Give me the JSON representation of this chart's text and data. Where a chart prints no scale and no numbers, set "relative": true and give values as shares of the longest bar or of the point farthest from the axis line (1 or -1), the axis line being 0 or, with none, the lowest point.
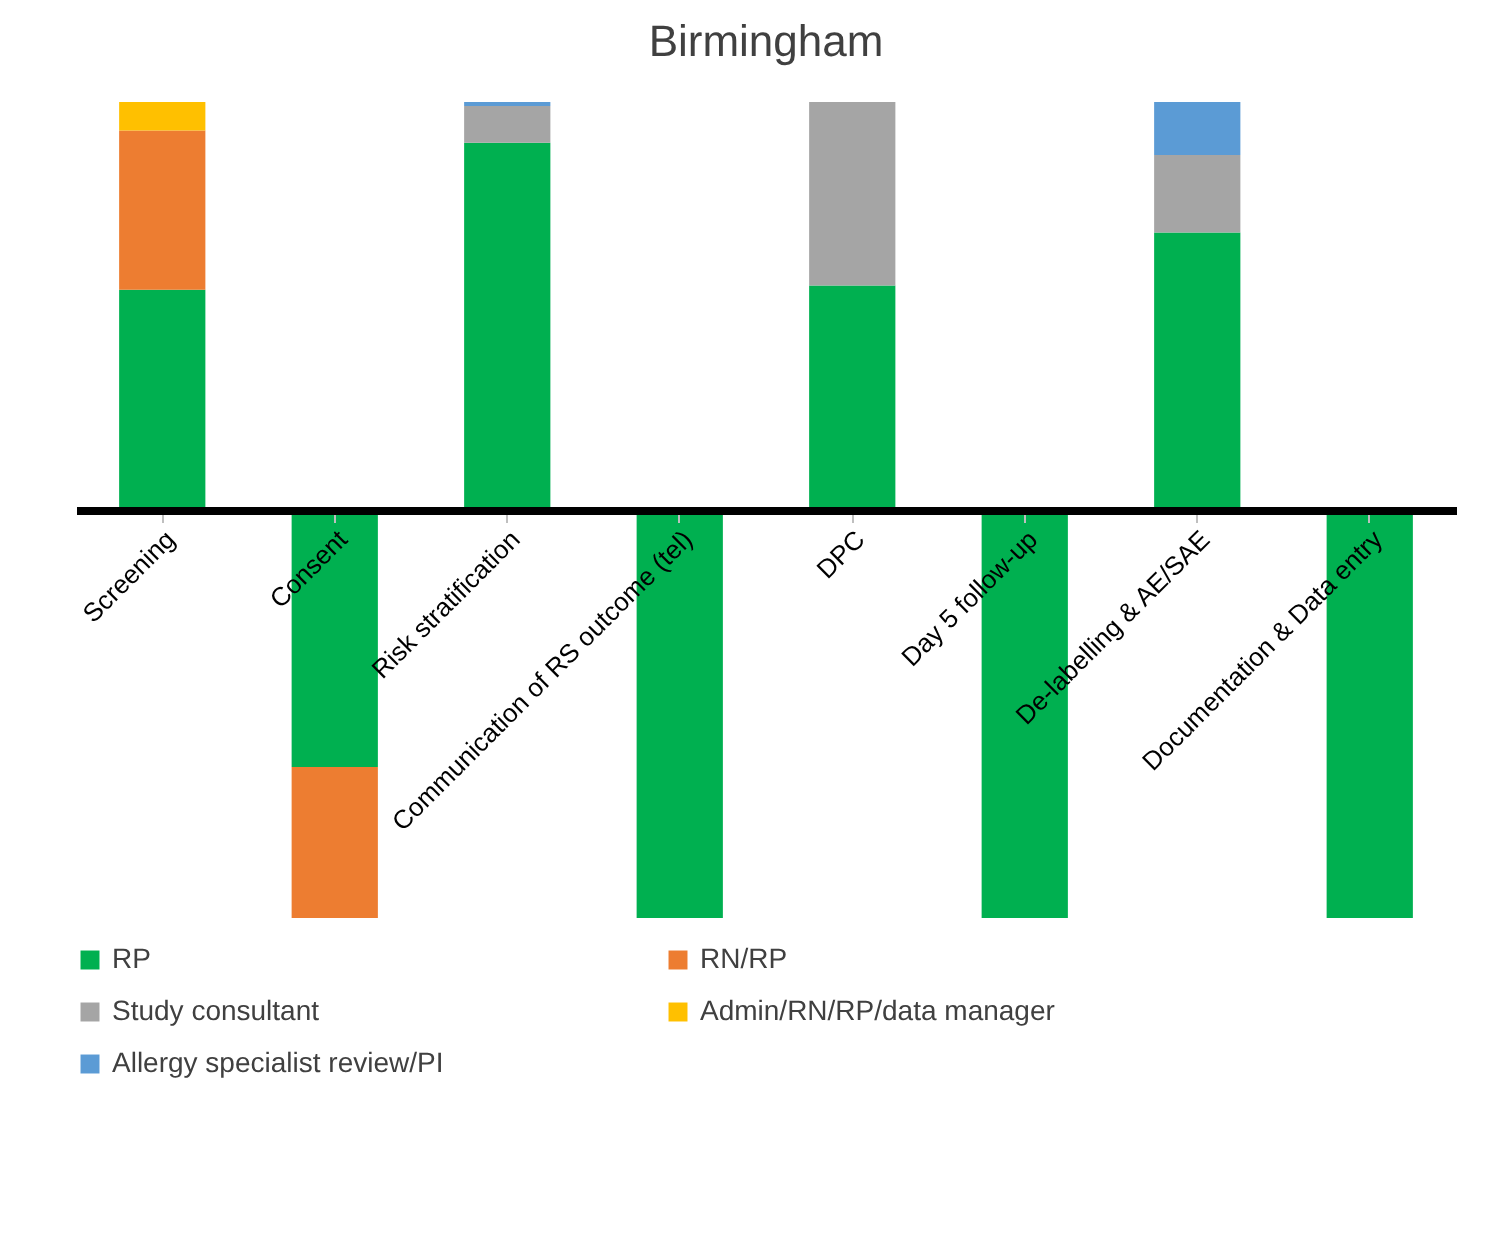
{
  "chart_data": {
    "type": "bar",
    "title": "Birmingham",
    "relative": true,
    "stacked": true,
    "legend": "bottom",
    "grid": false,
    "categories": [
      "Screening",
      "Consent",
      "Risk stratification",
      "Communication of RS outcome (tel)",
      "DPC",
      "Day 5 follow-up",
      "De-labelling & AE/SAE",
      "Documentation & Data entry"
    ],
    "series": [
      {
        "name": "RP",
        "color": "#00b050",
        "values": [
          0.54,
          -0.63,
          0.9,
          -1,
          0.55,
          -1,
          0.68,
          -1
        ]
      },
      {
        "name": "RN/RP",
        "color": "#ed7d31",
        "values": [
          0.39,
          -0.37,
          null,
          null,
          null,
          null,
          null,
          null
        ]
      },
      {
        "name": "Study consultant",
        "color": "#a5a5a5",
        "values": [
          null,
          null,
          0.09,
          null,
          0.45,
          null,
          0.19,
          null
        ]
      },
      {
        "name": "Admin/RN/RP/data manager",
        "color": "#ffc000",
        "values": [
          0.07,
          null,
          null,
          null,
          null,
          null,
          null,
          null
        ]
      },
      {
        "name": "Allergy specialist review/PI",
        "color": "#5b9bd5",
        "values": [
          null,
          null,
          0.01,
          null,
          null,
          null,
          0.13,
          null
        ]
      }
    ]
  }
}
